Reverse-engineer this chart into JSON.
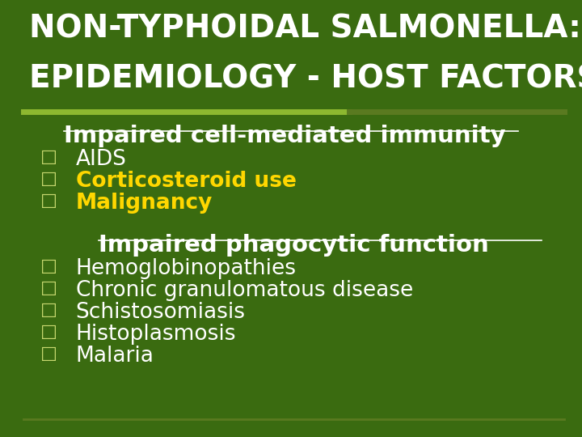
{
  "background_color": "#3a6b10",
  "title_line1": "NON-TYPHOIDAL SALMONELLA:",
  "title_line2": "EPIDEMIOLOGY - HOST FACTORS",
  "title_color": "#ffffff",
  "title_fontsize": 28,
  "section1_header": "Impaired cell-mediated immunity",
  "section1_header_color": "#ffffff",
  "section1_items": [
    "AIDS",
    "Corticosteroid use",
    "Malignancy"
  ],
  "section1_colors": [
    "#ffffff",
    "#ffd700",
    "#ffd700"
  ],
  "section2_header": "Impaired phagocytic function",
  "section2_header_color": "#ffffff",
  "section2_items": [
    "Hemoglobinopathies",
    "Chronic granulomatous disease",
    "Schistosomiasis",
    "Histoplasmosis",
    "Malaria"
  ],
  "section2_colors": [
    "#ffffff",
    "#ffffff",
    "#ffffff",
    "#ffffff",
    "#ffffff"
  ],
  "bullet_color": "#c8d870",
  "item_fontsize": 19,
  "header_fontsize": 21,
  "divider_left_color": "#8db830",
  "divider_right_color": "#5a7a20",
  "bottom_line_color": "#5a7a20"
}
